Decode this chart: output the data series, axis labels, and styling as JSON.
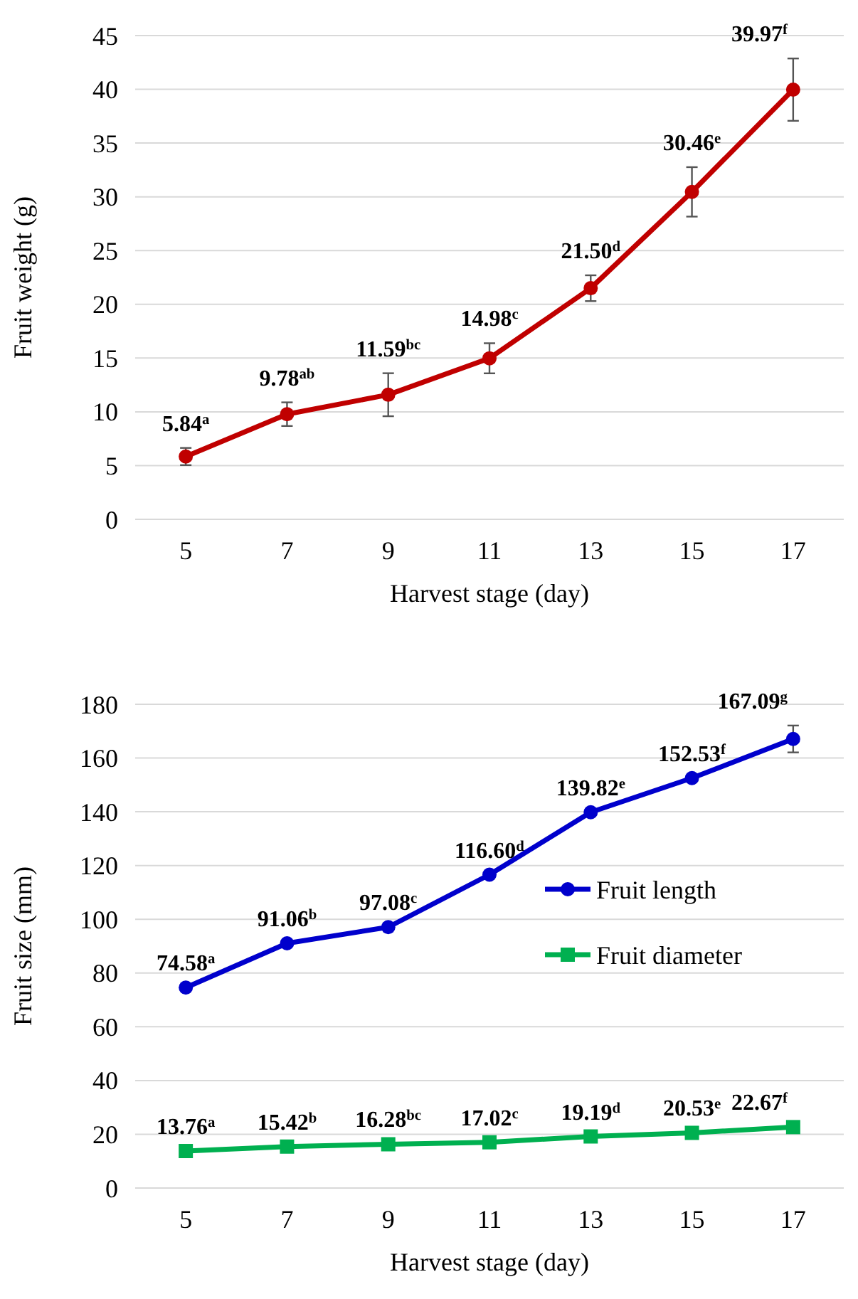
{
  "chart_data": [
    {
      "type": "line",
      "xlabel": "Harvest stage (day)",
      "ylabel": "Fruit weight (g)",
      "categories": [
        "5",
        "7",
        "9",
        "11",
        "13",
        "15",
        "17"
      ],
      "ylim": [
        0,
        45
      ],
      "yticks": [
        0,
        5,
        10,
        15,
        20,
        25,
        30,
        35,
        40,
        45
      ],
      "grid": "y",
      "legend": false,
      "marker": "circle",
      "series": [
        {
          "color": "#c00000",
          "values": [
            5.84,
            9.78,
            11.59,
            14.98,
            21.5,
            30.46,
            39.97
          ],
          "errors": [
            0.8,
            1.1,
            2.0,
            1.4,
            1.2,
            2.3,
            2.9
          ],
          "value_labels": [
            "5.84$^{a}$",
            "9.78$^{ab}$",
            "11.59$^{bc}$",
            "14.98$^{c}$",
            "21.50$^{d}$",
            "30.46$^{e}$",
            "39.97$^{f}$"
          ]
        }
      ]
    },
    {
      "type": "line",
      "xlabel": "Harvest stage (day)",
      "ylabel": "Fruit size (mm)",
      "categories": [
        "5",
        "7",
        "9",
        "11",
        "13",
        "15",
        "17"
      ],
      "ylim": [
        0,
        180
      ],
      "yticks": [
        0,
        20,
        40,
        60,
        80,
        100,
        120,
        140,
        160,
        180
      ],
      "grid": "y",
      "legend": "right",
      "series": [
        {
          "name": "Fruit length",
          "color": "#0000cc",
          "marker": "circle",
          "values": [
            74.58,
            91.06,
            97.08,
            116.6,
            139.82,
            152.53,
            167.09
          ],
          "errors": [
            null,
            null,
            null,
            null,
            null,
            null,
            5
          ],
          "value_labels": [
            "74.58$^{a}$",
            "91.06$^{b}$",
            "97.08$^{c}$",
            "116.60$^{d}$",
            "139.82$^{e}$",
            "152.53$^{f}$",
            "167.09$^{g}$"
          ]
        },
        {
          "name": "Fruit diameter",
          "color": "#00b050",
          "marker": "square",
          "values": [
            13.76,
            15.42,
            16.28,
            17.02,
            19.19,
            20.53,
            22.67
          ],
          "value_labels": [
            "13.76$^{a}$",
            "15.42$^{b}$",
            "16.28$^{bc}$",
            "17.02$^{c}$",
            "19.19$^{d}$",
            "20.53$^{e}$",
            "22.67$^{f}$"
          ]
        }
      ]
    }
  ]
}
